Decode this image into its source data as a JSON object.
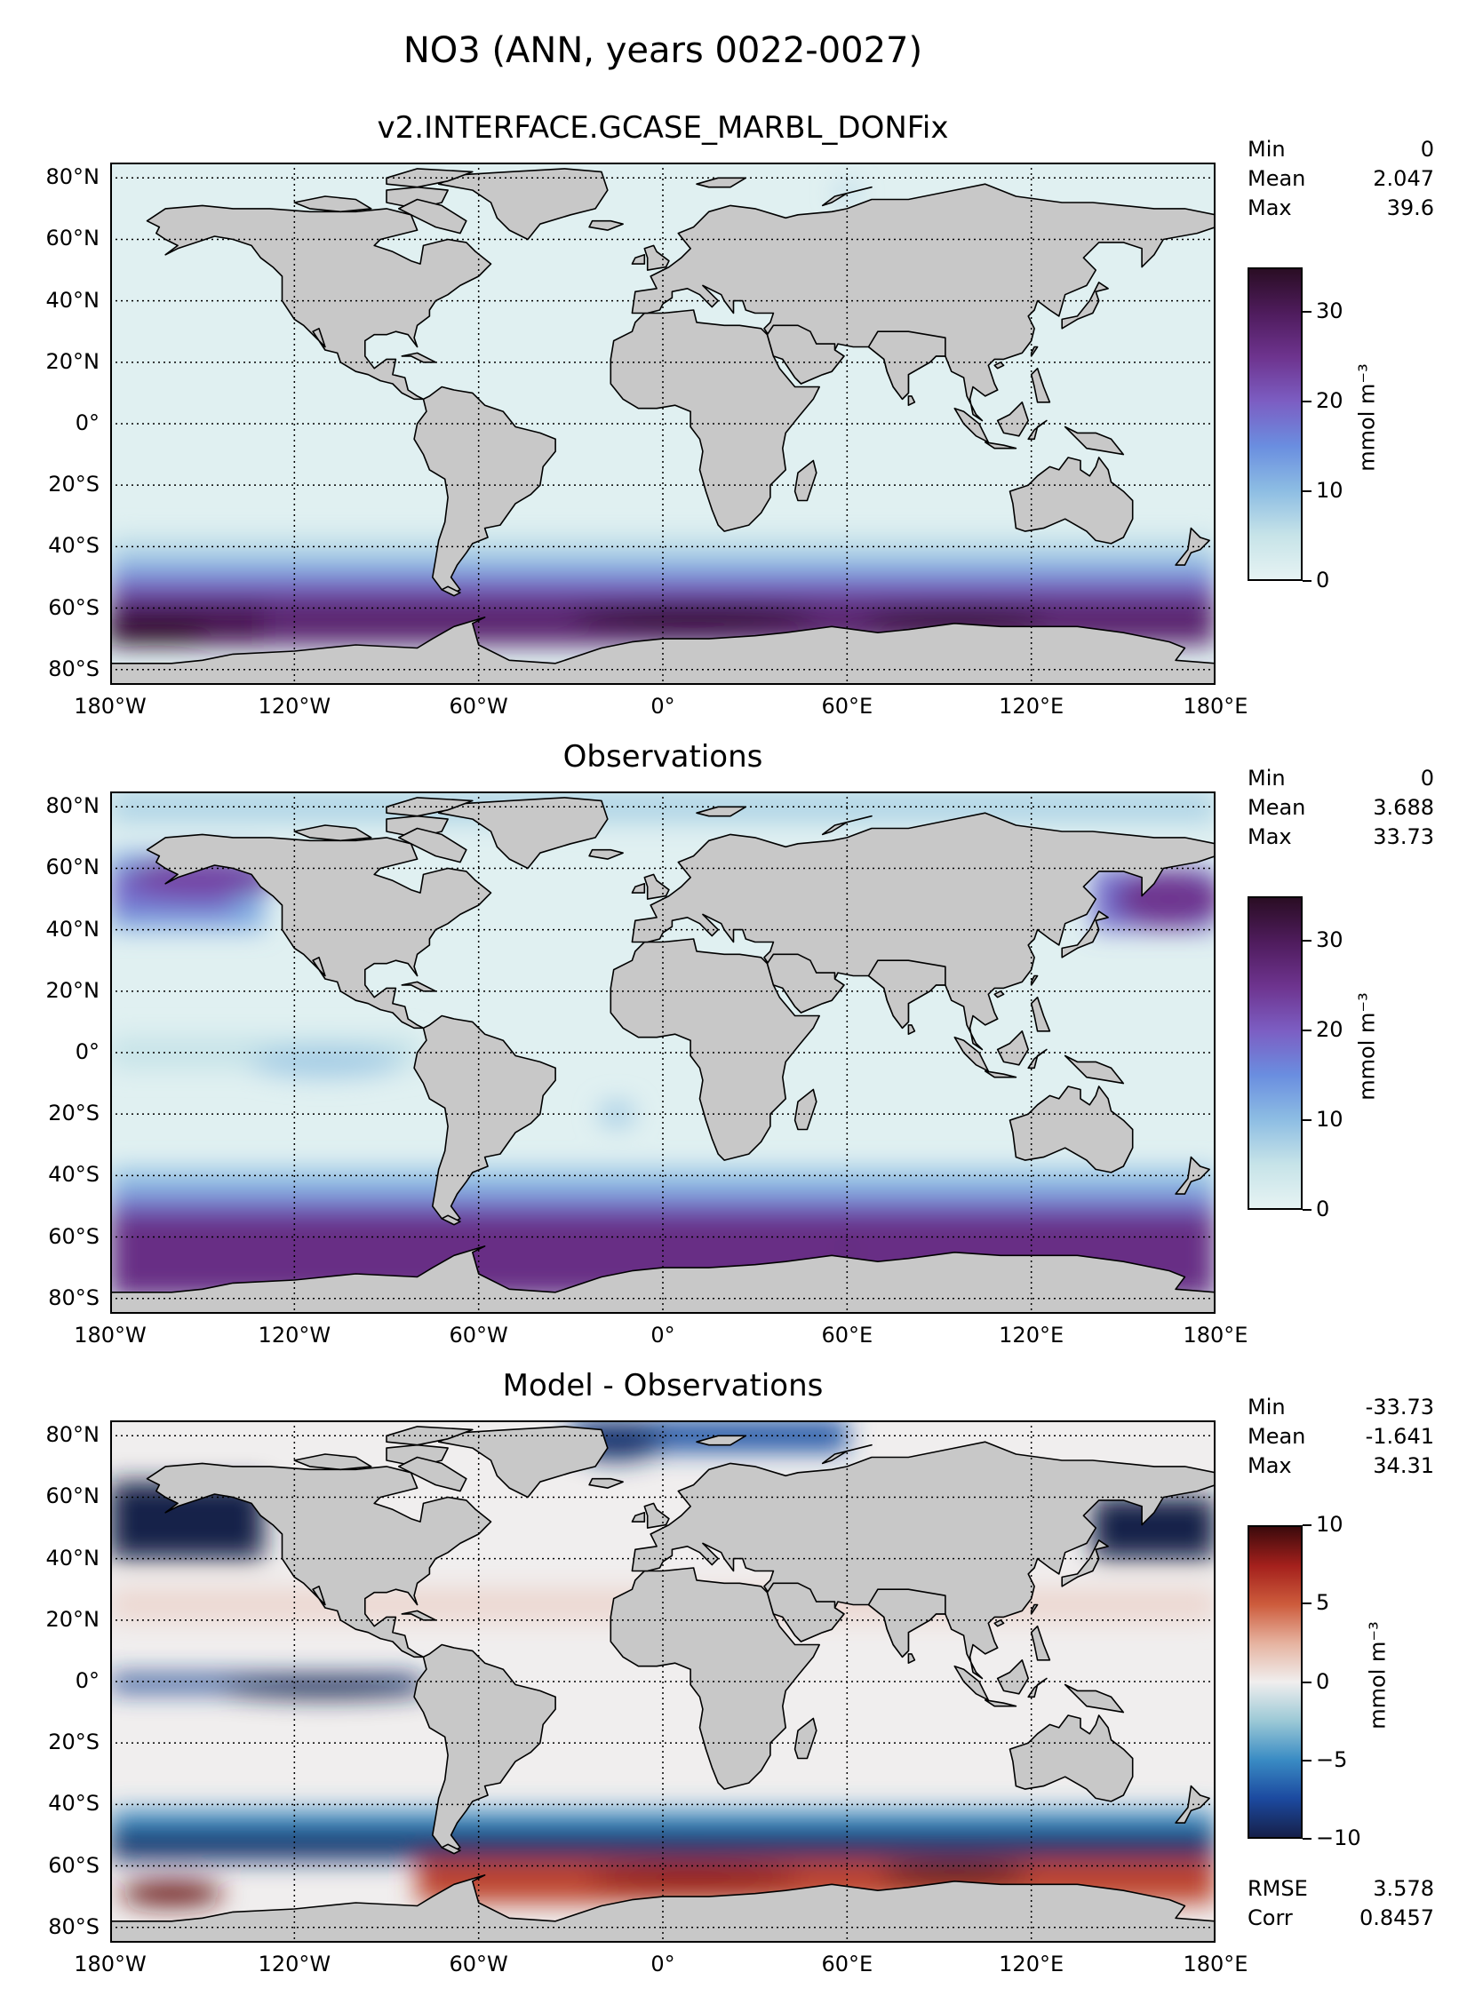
{
  "title": "NO3 (ANN, years 0022-0027)",
  "panels": [
    {
      "title": "v2.INTERFACE.GCASE_MARBL_DONFix",
      "stats": [
        {
          "label": "Min",
          "value": "0"
        },
        {
          "label": "Mean",
          "value": "2.047"
        },
        {
          "label": "Max",
          "value": "39.6"
        }
      ],
      "colorbar": {
        "ticks": [
          "0",
          "10",
          "20",
          "30"
        ],
        "range": [
          0,
          35
        ],
        "colors": [
          "#e6f3f3",
          "#c6e3e8",
          "#8dbde3",
          "#6a8ee0",
          "#7c5ec3",
          "#6e348f",
          "#4f1c5d",
          "#2a0d24"
        ]
      },
      "unit": "mmol m⁻³"
    },
    {
      "title": "Observations",
      "stats": [
        {
          "label": "Min",
          "value": "0"
        },
        {
          "label": "Mean",
          "value": "3.688"
        },
        {
          "label": "Max",
          "value": "33.73"
        }
      ],
      "colorbar": {
        "ticks": [
          "0",
          "10",
          "20",
          "30"
        ],
        "range": [
          0,
          35
        ],
        "colors": [
          "#e6f3f3",
          "#c6e3e8",
          "#8dbde3",
          "#6a8ee0",
          "#7c5ec3",
          "#6e348f",
          "#4f1c5d",
          "#2a0d24"
        ]
      },
      "unit": "mmol m⁻³"
    },
    {
      "title": "Model - Observations",
      "stats": [
        {
          "label": "Min",
          "value": "-33.73"
        },
        {
          "label": "Mean",
          "value": "-1.641"
        },
        {
          "label": "Max",
          "value": "34.31"
        }
      ],
      "colorbar": {
        "ticks": [
          "−10",
          "−5",
          "0",
          "5",
          "10"
        ],
        "range": [
          -10,
          10
        ],
        "colors": [
          "#16204a",
          "#1c4aa0",
          "#3a8cc4",
          "#9cc9d6",
          "#f0eeee",
          "#e6b3a0",
          "#cd5c3c",
          "#a4201c",
          "#3c0a0c"
        ]
      },
      "unit": "mmol m⁻³",
      "metrics": [
        {
          "label": "RMSE",
          "value": "3.578"
        },
        {
          "label": "Corr",
          "value": "0.8457"
        }
      ]
    }
  ],
  "lat_ticks": [
    "80°N",
    "60°N",
    "40°N",
    "20°N",
    "0°",
    "20°S",
    "40°S",
    "60°S",
    "80°S"
  ],
  "lon_ticks": [
    "180°W",
    "120°W",
    "60°W",
    "0°",
    "60°E",
    "120°E",
    "180°E"
  ],
  "colors": {
    "land": "#c8c8c8",
    "coast": "#000000",
    "grid": "#000000"
  }
}
